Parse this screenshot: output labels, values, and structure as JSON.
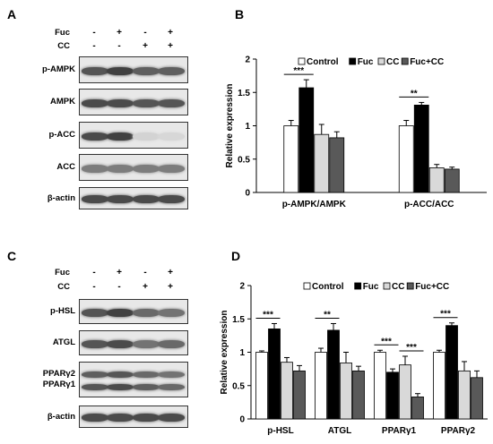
{
  "panels": {
    "A": "A",
    "B": "B",
    "C": "C",
    "D": "D"
  },
  "western_top": {
    "fuc_label": "Fuc",
    "cc_label": "CC",
    "fuc_signs": [
      "-",
      "+",
      "-",
      "+"
    ],
    "cc_signs": [
      "-",
      "-",
      "+",
      "+"
    ],
    "blots": [
      {
        "label": "p-AMPK",
        "intensity": [
          0.75,
          0.85,
          0.7,
          0.7
        ]
      },
      {
        "label": "AMPK",
        "intensity": [
          0.8,
          0.8,
          0.75,
          0.75
        ]
      },
      {
        "label": "p-ACC",
        "intensity": [
          0.8,
          0.85,
          0.12,
          0.1
        ]
      },
      {
        "label": "ACC",
        "intensity": [
          0.55,
          0.55,
          0.55,
          0.55
        ]
      },
      {
        "label": "β-actin",
        "intensity": [
          0.8,
          0.8,
          0.8,
          0.8
        ]
      }
    ]
  },
  "western_bottom": {
    "fuc_label": "Fuc",
    "cc_label": "CC",
    "fuc_signs": [
      "-",
      "+",
      "-",
      "+"
    ],
    "cc_signs": [
      "-",
      "-",
      "+",
      "+"
    ],
    "blots": [
      {
        "label": "p-HSL",
        "intensity": [
          0.75,
          0.85,
          0.65,
          0.6
        ]
      },
      {
        "label": "ATGL",
        "intensity": [
          0.75,
          0.8,
          0.6,
          0.65
        ]
      },
      {
        "label": "PPARγ2\nPPARγ1",
        "intensity": [
          0.7,
          0.75,
          0.65,
          0.6
        ]
      },
      {
        "label": "β-actin",
        "intensity": [
          0.8,
          0.8,
          0.8,
          0.8
        ]
      }
    ]
  },
  "colors": {
    "Control": "#ffffff",
    "Fuc": "#000000",
    "CC": "#d9d9d9",
    "Fuc+CC": "#595959"
  },
  "chart_data": [
    {
      "type": "bar",
      "ylabel": "Relative expression",
      "ylim": [
        0,
        2
      ],
      "yticks": [
        "0",
        "0.5",
        "1",
        "1.5",
        "2"
      ],
      "categories": [
        "p-AMPK/AMPK",
        "p-ACC/ACC"
      ],
      "series": [
        {
          "name": "Control",
          "values": [
            1.0,
            1.0
          ],
          "errors": [
            0.08,
            0.08
          ]
        },
        {
          "name": "Fuc",
          "values": [
            1.57,
            1.31
          ],
          "errors": [
            0.12,
            0.04
          ]
        },
        {
          "name": "CC",
          "values": [
            0.87,
            0.37
          ],
          "errors": [
            0.15,
            0.05
          ]
        },
        {
          "name": "Fuc+CC",
          "values": [
            0.82,
            0.35
          ],
          "errors": [
            0.09,
            0.03
          ]
        }
      ],
      "annotations": [
        {
          "text": "***",
          "category": 0,
          "from": 0,
          "to": 1
        },
        {
          "text": "**",
          "category": 1,
          "from": 0,
          "to": 1
        }
      ]
    },
    {
      "type": "bar",
      "ylabel": "Relative expression",
      "ylim": [
        0,
        2
      ],
      "yticks": [
        "0",
        "0.5",
        "1",
        "1.5",
        "2"
      ],
      "categories": [
        "p-HSL",
        "ATGL",
        "PPARγ1",
        "PPARγ2"
      ],
      "series": [
        {
          "name": "Control",
          "values": [
            1.0,
            1.0,
            1.0,
            1.0
          ],
          "errors": [
            0.02,
            0.06,
            0.03,
            0.03
          ]
        },
        {
          "name": "Fuc",
          "values": [
            1.35,
            1.33,
            0.7,
            1.4
          ],
          "errors": [
            0.08,
            0.1,
            0.05,
            0.04
          ]
        },
        {
          "name": "CC",
          "values": [
            0.85,
            0.84,
            0.81,
            0.72
          ],
          "errors": [
            0.07,
            0.16,
            0.13,
            0.14
          ]
        },
        {
          "name": "Fuc+CC",
          "values": [
            0.72,
            0.72,
            0.33,
            0.62
          ],
          "errors": [
            0.08,
            0.07,
            0.05,
            0.1
          ]
        }
      ],
      "annotations": [
        {
          "text": "***",
          "category": 0,
          "from": 0,
          "to": 1
        },
        {
          "text": "**",
          "category": 1,
          "from": 0,
          "to": 1
        },
        {
          "text": "***",
          "category": 2,
          "from": 0,
          "to": 1
        },
        {
          "text": "***",
          "category": 2,
          "from": 2,
          "to": 3
        },
        {
          "text": "***",
          "category": 3,
          "from": 0,
          "to": 1
        }
      ]
    }
  ]
}
